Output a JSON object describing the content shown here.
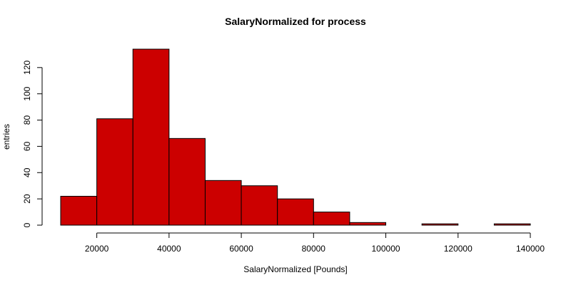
{
  "chart_data": {
    "type": "bar",
    "title": "SalaryNormalized for process",
    "xlabel": "SalaryNormalized [Pounds]",
    "ylabel": "entries",
    "bar_color": "#cc0000",
    "xlim": [
      10000,
      140000
    ],
    "ylim": [
      0,
      134
    ],
    "bins": [
      {
        "start": 10000,
        "end": 20000,
        "count": 22
      },
      {
        "start": 20000,
        "end": 30000,
        "count": 81
      },
      {
        "start": 30000,
        "end": 40000,
        "count": 134
      },
      {
        "start": 40000,
        "end": 50000,
        "count": 66
      },
      {
        "start": 50000,
        "end": 60000,
        "count": 34
      },
      {
        "start": 60000,
        "end": 70000,
        "count": 30
      },
      {
        "start": 70000,
        "end": 80000,
        "count": 20
      },
      {
        "start": 80000,
        "end": 90000,
        "count": 10
      },
      {
        "start": 90000,
        "end": 100000,
        "count": 2
      },
      {
        "start": 100000,
        "end": 110000,
        "count": 0
      },
      {
        "start": 110000,
        "end": 120000,
        "count": 1
      },
      {
        "start": 120000,
        "end": 130000,
        "count": 0
      },
      {
        "start": 130000,
        "end": 140000,
        "count": 1
      }
    ],
    "xticks": [
      "20000",
      "40000",
      "60000",
      "80000",
      "100000",
      "120000",
      "140000"
    ],
    "yticks": [
      "0",
      "20",
      "40",
      "60",
      "80",
      "100",
      "120"
    ]
  }
}
